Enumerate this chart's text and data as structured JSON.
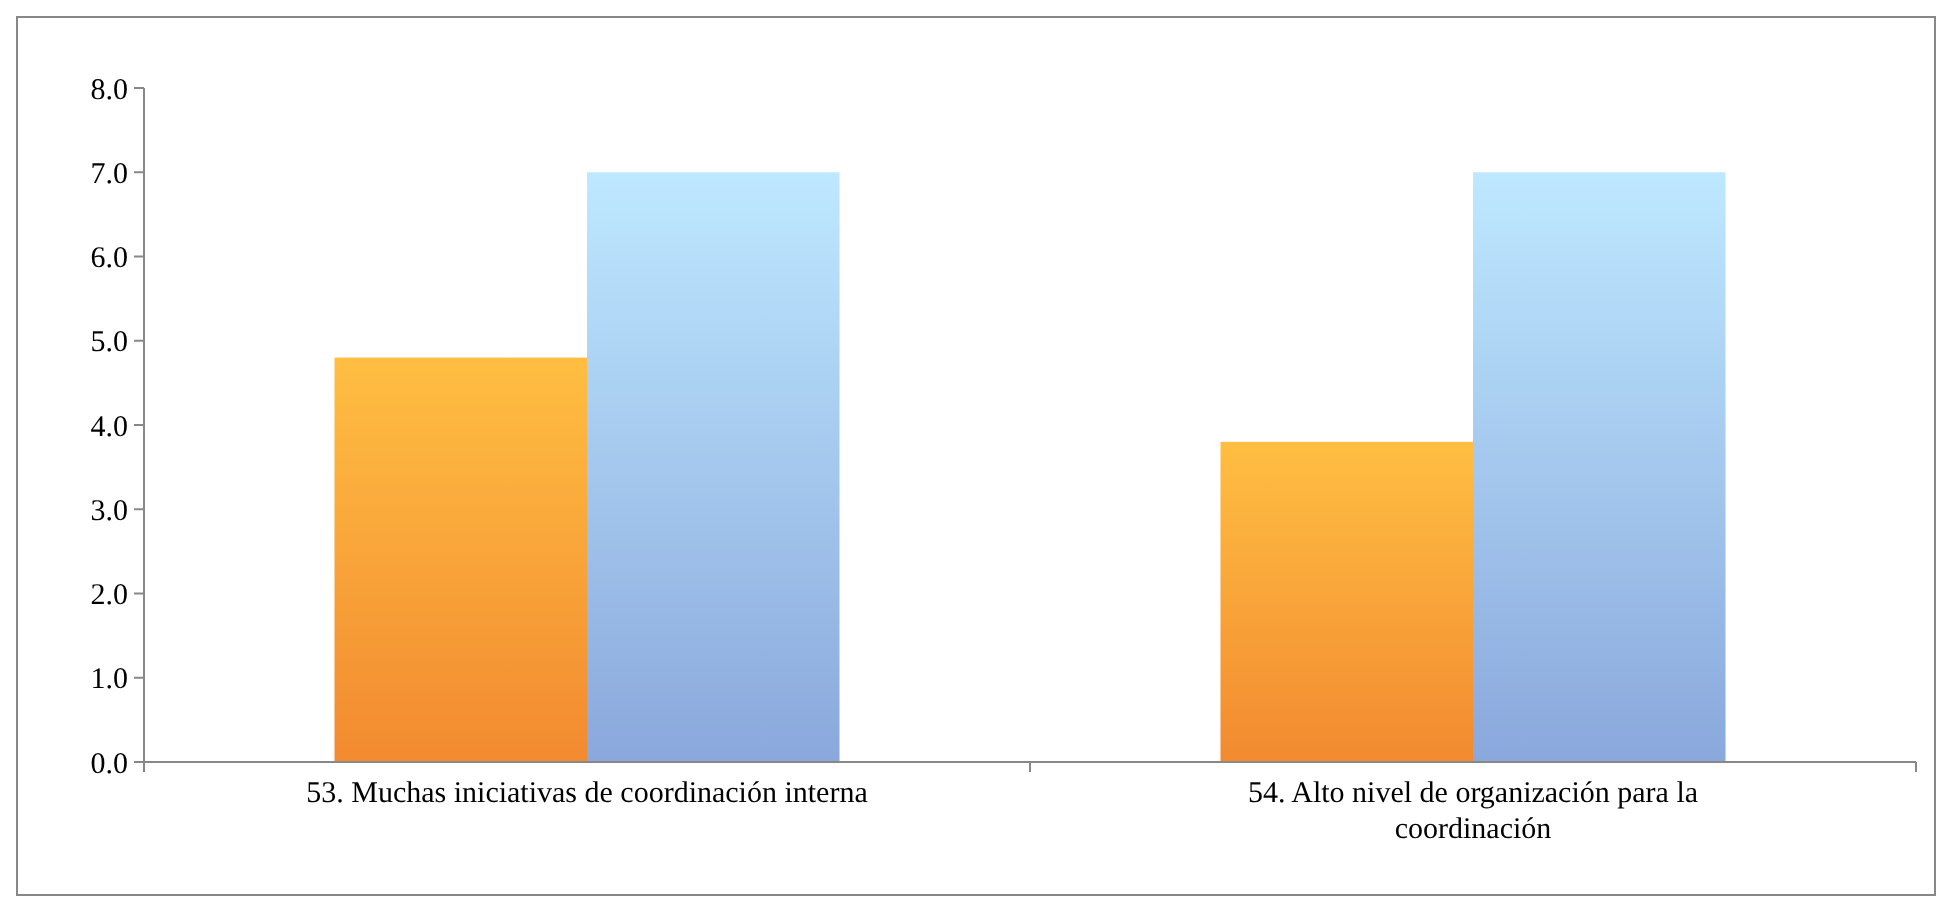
{
  "chart_data": {
    "type": "bar",
    "categories": [
      "53. Muchas iniciativas de coordinación interna",
      "54. Alto nivel de organización para la coordinación"
    ],
    "series": [
      {
        "color": "#f28a30",
        "values": [
          4.8,
          3.8
        ]
      },
      {
        "color": "#8aa8dc",
        "values": [
          7.0,
          7.0
        ]
      }
    ],
    "ylim": [
      0,
      8
    ],
    "yticks": [
      {
        "value": 0,
        "label": "0.0"
      },
      {
        "value": 1,
        "label": "1.0"
      },
      {
        "value": 2,
        "label": "2.0"
      },
      {
        "value": 3,
        "label": "3.0"
      },
      {
        "value": 4,
        "label": "4.0"
      },
      {
        "value": 5,
        "label": "5.0"
      },
      {
        "value": 6,
        "label": "6.0"
      },
      {
        "value": 7,
        "label": "7.0"
      },
      {
        "value": 8,
        "label": "8.0"
      }
    ]
  }
}
